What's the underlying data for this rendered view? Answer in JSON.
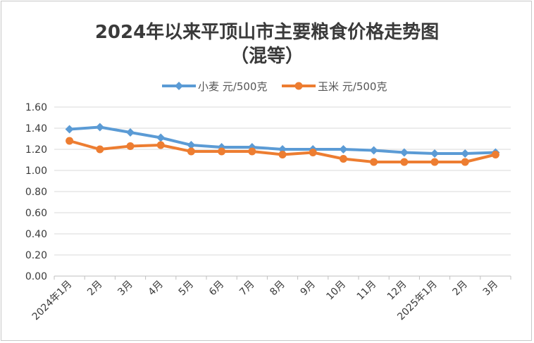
{
  "chart_data": {
    "type": "line",
    "title": "2024年以来平顶山市主要粮食价格走势图",
    "subtitle": "（混等）",
    "xlabel": "",
    "ylabel": "",
    "ylim": [
      0,
      1.6
    ],
    "yticks": [
      "0.00",
      "0.20",
      "0.40",
      "0.60",
      "0.80",
      "1.00",
      "1.20",
      "1.40",
      "1.60"
    ],
    "grid": true,
    "legend_position": "top",
    "categories": [
      "2024年1月",
      "2月",
      "3月",
      "4月",
      "5月",
      "6月",
      "7月",
      "8月",
      "9月",
      "10月",
      "11月",
      "12月",
      "2025年1月",
      "2月",
      "3月"
    ],
    "series": [
      {
        "name": "小麦 元/500克",
        "color": "#5b9bd5",
        "marker": "diamond",
        "values": [
          1.39,
          1.41,
          1.36,
          1.31,
          1.24,
          1.22,
          1.22,
          1.2,
          1.2,
          1.2,
          1.19,
          1.17,
          1.16,
          1.16,
          1.17
        ]
      },
      {
        "name": "玉米 元/500克",
        "color": "#ed7d31",
        "marker": "circle",
        "values": [
          1.28,
          1.2,
          1.23,
          1.24,
          1.18,
          1.18,
          1.18,
          1.15,
          1.17,
          1.11,
          1.08,
          1.08,
          1.08,
          1.08,
          1.15
        ]
      }
    ]
  }
}
